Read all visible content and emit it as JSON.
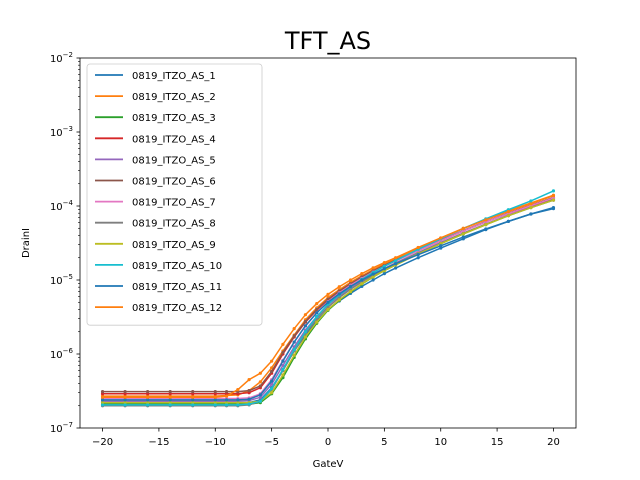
{
  "chart_data": {
    "type": "line",
    "title": "TFT_AS",
    "xlabel": "GateV",
    "ylabel": "DrainI",
    "xlim": [
      -22,
      22
    ],
    "ylim": [
      1e-07,
      0.01
    ],
    "yscale": "log",
    "xticks": [
      -20,
      -15,
      -10,
      -5,
      0,
      5,
      10,
      15,
      20
    ],
    "xtick_labels": [
      "−20",
      "−15",
      "−10",
      "−5",
      "0",
      "5",
      "10",
      "15",
      "20"
    ],
    "yticks": [
      1e-07,
      1e-06,
      1e-05,
      0.0001,
      0.001,
      0.01
    ],
    "ytick_labels": [
      {
        "base": "10",
        "exp": "−7"
      },
      {
        "base": "10",
        "exp": "−6"
      },
      {
        "base": "10",
        "exp": "−5"
      },
      {
        "base": "10",
        "exp": "−4"
      },
      {
        "base": "10",
        "exp": "−3"
      },
      {
        "base": "10",
        "exp": "−2"
      }
    ],
    "grid": false,
    "legend_position": "upper-left",
    "x": [
      -20,
      -18,
      -16,
      -14,
      -12,
      -10,
      -9,
      -8,
      -7,
      -6,
      -5,
      -4,
      -3,
      -2,
      -1,
      0,
      1,
      2,
      3,
      4,
      5,
      6,
      8,
      10,
      12,
      14,
      16,
      18,
      20
    ],
    "series": [
      {
        "name": "0819_ITZO_AS_1",
        "color": "#1f77b4",
        "values": [
          2.2e-07,
          2.2e-07,
          2.2e-07,
          2.2e-07,
          2.2e-07,
          2.2e-07,
          2.2e-07,
          2.2e-07,
          2.2e-07,
          2.4e-07,
          3.5e-07,
          6e-07,
          1.1e-06,
          1.8e-06,
          2.8e-06,
          4e-06,
          5.2e-06,
          6.6e-06,
          8.2e-06,
          1e-05,
          1.22e-05,
          1.45e-05,
          2e-05,
          2.7e-05,
          3.6e-05,
          4.8e-05,
          6.2e-05,
          7.8e-05,
          9.2e-05
        ]
      },
      {
        "name": "0819_ITZO_AS_2",
        "color": "#ff7f0e",
        "values": [
          2.7e-07,
          2.7e-07,
          2.7e-07,
          2.7e-07,
          2.7e-07,
          2.7e-07,
          2.75e-07,
          2.8e-07,
          3.2e-07,
          4.2e-07,
          6.5e-07,
          1.1e-06,
          1.8e-06,
          2.9e-06,
          4.2e-06,
          5.8e-06,
          7.4e-06,
          9.3e-06,
          1.14e-05,
          1.38e-05,
          1.65e-05,
          1.95e-05,
          2.7e-05,
          3.7e-05,
          5e-05,
          6.6e-05,
          8.6e-05,
          0.00011,
          0.00014
        ]
      },
      {
        "name": "0819_ITZO_AS_3",
        "color": "#2ca02c",
        "values": [
          2.1e-07,
          2.1e-07,
          2.1e-07,
          2.1e-07,
          2.1e-07,
          2.1e-07,
          2.1e-07,
          2.1e-07,
          2.1e-07,
          2.2e-07,
          2.9e-07,
          4.8e-07,
          9e-07,
          1.6e-06,
          2.6e-06,
          3.9e-06,
          5.3e-06,
          6.9e-06,
          8.8e-06,
          1.1e-05,
          1.34e-05,
          1.6e-05,
          2.25e-05,
          3.1e-05,
          4.2e-05,
          5.6e-05,
          7.4e-05,
          9.6e-05,
          0.000122
        ]
      },
      {
        "name": "0819_ITZO_AS_4",
        "color": "#d62728",
        "values": [
          2.9e-07,
          2.9e-07,
          2.9e-07,
          2.9e-07,
          2.9e-07,
          2.9e-07,
          2.9e-07,
          2.9e-07,
          3e-07,
          3.5e-07,
          5.5e-07,
          1e-06,
          1.7e-06,
          2.7e-06,
          3.9e-06,
          5.4e-06,
          7e-06,
          8.8e-06,
          1.08e-05,
          1.3e-05,
          1.55e-05,
          1.82e-05,
          2.5e-05,
          3.4e-05,
          4.6e-05,
          6.1e-05,
          7.9e-05,
          0.0001,
          0.000128
        ]
      },
      {
        "name": "0819_ITZO_AS_5",
        "color": "#9467bd",
        "values": [
          2.3e-07,
          2.3e-07,
          2.3e-07,
          2.3e-07,
          2.3e-07,
          2.3e-07,
          2.3e-07,
          2.3e-07,
          2.35e-07,
          2.6e-07,
          3.9e-07,
          7e-07,
          1.25e-06,
          2.1e-06,
          3.2e-06,
          4.6e-06,
          6.1e-06,
          7.8e-06,
          9.7e-06,
          1.19e-05,
          1.43e-05,
          1.7e-05,
          2.35e-05,
          3.2e-05,
          4.3e-05,
          5.7e-05,
          7.5e-05,
          9.6e-05,
          0.00012
        ]
      },
      {
        "name": "0819_ITZO_AS_6",
        "color": "#8c564b",
        "values": [
          3.1e-07,
          3.1e-07,
          3.1e-07,
          3.1e-07,
          3.1e-07,
          3.1e-07,
          3.1e-07,
          3.1e-07,
          3.2e-07,
          3.7e-07,
          5.8e-07,
          1.05e-06,
          1.75e-06,
          2.75e-06,
          4e-06,
          5.5e-06,
          7.1e-06,
          8.9e-06,
          1.1e-05,
          1.33e-05,
          1.58e-05,
          1.86e-05,
          2.55e-05,
          3.45e-05,
          4.65e-05,
          6.15e-05,
          8e-05,
          0.000102,
          0.00013
        ]
      },
      {
        "name": "0819_ITZO_AS_7",
        "color": "#e377c2",
        "values": [
          2.5e-07,
          2.5e-07,
          2.5e-07,
          2.5e-07,
          2.5e-07,
          2.5e-07,
          2.5e-07,
          2.5e-07,
          2.55e-07,
          2.9e-07,
          4.5e-07,
          8.2e-07,
          1.45e-06,
          2.4e-06,
          3.6e-06,
          5.1e-06,
          6.7e-06,
          8.5e-06,
          1.05e-05,
          1.28e-05,
          1.53e-05,
          1.8e-05,
          2.5e-05,
          3.4e-05,
          4.6e-05,
          6.1e-05,
          7.9e-05,
          0.000101,
          0.000128
        ]
      },
      {
        "name": "0819_ITZO_AS_8",
        "color": "#7f7f7f",
        "values": [
          2e-07,
          2e-07,
          2e-07,
          2e-07,
          2e-07,
          2e-07,
          2e-07,
          2e-07,
          2.05e-07,
          2.3e-07,
          3.3e-07,
          6e-07,
          1.1e-06,
          1.9e-06,
          3e-06,
          4.3e-06,
          5.8e-06,
          7.5e-06,
          9.4e-06,
          1.16e-05,
          1.4e-05,
          1.67e-05,
          2.3e-05,
          3.15e-05,
          4.25e-05,
          5.65e-05,
          7.4e-05,
          9.5e-05,
          0.00012
        ]
      },
      {
        "name": "0819_ITZO_AS_9",
        "color": "#bcbd22",
        "values": [
          2.2e-07,
          2.2e-07,
          2.2e-07,
          2.2e-07,
          2.2e-07,
          2.2e-07,
          2.2e-07,
          2.2e-07,
          2.2e-07,
          2.3e-07,
          3e-07,
          5.2e-07,
          9.6e-07,
          1.7e-06,
          2.7e-06,
          4e-06,
          5.4e-06,
          7e-06,
          8.9e-06,
          1.1e-05,
          1.34e-05,
          1.6e-05,
          2.25e-05,
          3.1e-05,
          4.2e-05,
          5.6e-05,
          7.4e-05,
          9.5e-05,
          0.00012
        ]
      },
      {
        "name": "0819_ITZO_AS_10",
        "color": "#17becf",
        "values": [
          2.05e-07,
          2.05e-07,
          2.05e-07,
          2.05e-07,
          2.05e-07,
          2.05e-07,
          2.05e-07,
          2.05e-07,
          2.1e-07,
          2.3e-07,
          3.4e-07,
          6.2e-07,
          1.15e-06,
          2e-06,
          3.2e-06,
          4.7e-06,
          6.3e-06,
          8.1e-06,
          1.02e-05,
          1.26e-05,
          1.53e-05,
          1.83e-05,
          2.6e-05,
          3.6e-05,
          4.95e-05,
          6.7e-05,
          8.9e-05,
          0.000117,
          0.00016
        ]
      },
      {
        "name": "0819_ITZO_AS_11",
        "color": "#1f77b4",
        "values": [
          2.4e-07,
          2.4e-07,
          2.4e-07,
          2.4e-07,
          2.4e-07,
          2.4e-07,
          2.4e-07,
          2.4e-07,
          2.45e-07,
          2.8e-07,
          4.3e-07,
          8e-07,
          1.45e-06,
          2.4e-06,
          3.6e-06,
          5e-06,
          6.5e-06,
          8.2e-06,
          1e-05,
          1.2e-05,
          1.42e-05,
          1.66e-05,
          2.2e-05,
          2.9e-05,
          3.8e-05,
          4.9e-05,
          6.2e-05,
          7.8e-05,
          9.5e-05
        ]
      },
      {
        "name": "0819_ITZO_AS_12",
        "color": "#ff7f0e",
        "values": [
          2.6e-07,
          2.6e-07,
          2.6e-07,
          2.6e-07,
          2.6e-07,
          2.6e-07,
          2.7e-07,
          3.3e-07,
          4.5e-07,
          5.5e-07,
          8e-07,
          1.35e-06,
          2.2e-06,
          3.4e-06,
          4.8e-06,
          6.4e-06,
          8.1e-06,
          1e-05,
          1.22e-05,
          1.46e-05,
          1.72e-05,
          2e-05,
          2.75e-05,
          3.7e-05,
          4.95e-05,
          6.5e-05,
          8.4e-05,
          0.000107,
          0.000138
        ]
      }
    ]
  }
}
